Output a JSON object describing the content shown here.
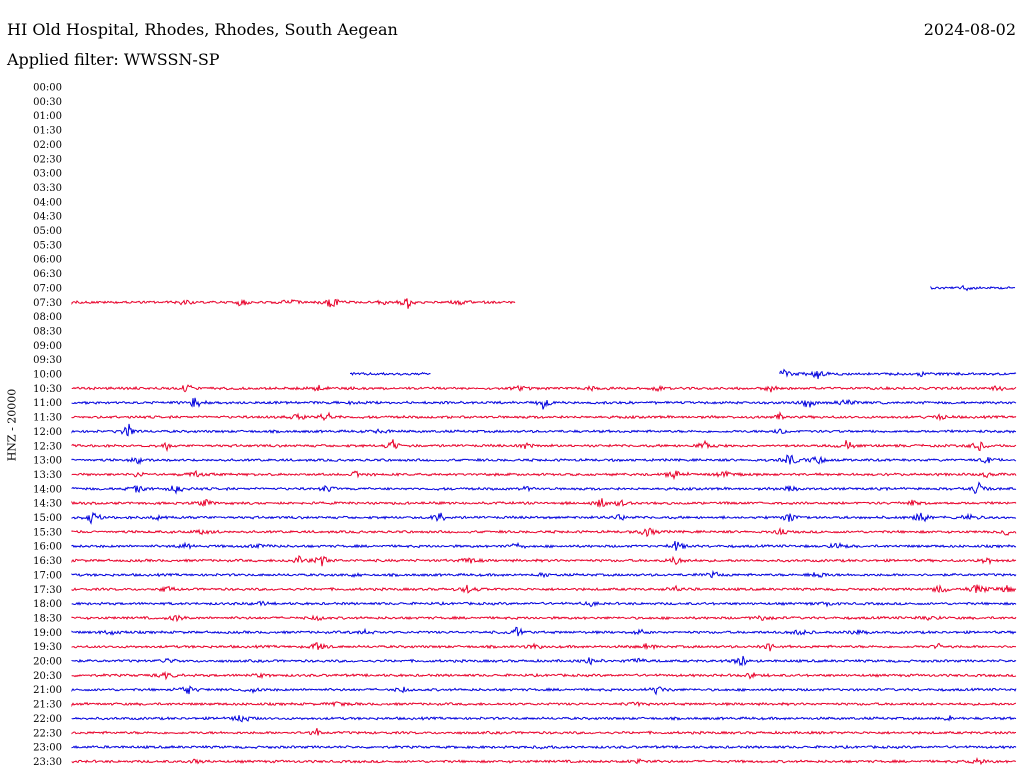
{
  "header": {
    "title": "HI Old Hospital, Rhodes, Rhodes, South Aegean",
    "date": "2024-08-02",
    "filter": "Applied filter: WWSSN-SP"
  },
  "chart_data": {
    "type": "line",
    "title": "HI Old Hospital, Rhodes, Rhodes, South Aegean",
    "subtitle": "Applied filter: WWSSN-SP",
    "ylabel": "HNZ - 20000",
    "row_labels": [
      "00:00",
      "00:30",
      "01:00",
      "01:30",
      "02:00",
      "02:30",
      "03:00",
      "03:30",
      "04:00",
      "04:30",
      "05:00",
      "05:30",
      "06:00",
      "06:30",
      "07:00",
      "07:30",
      "08:00",
      "08:30",
      "09:00",
      "09:30",
      "10:00",
      "10:30",
      "11:00",
      "11:30",
      "12:00",
      "12:30",
      "13:00",
      "13:30",
      "14:00",
      "14:30",
      "15:00",
      "15:30",
      "16:00",
      "16:30",
      "17:00",
      "17:30",
      "18:00",
      "18:30",
      "19:00",
      "19:30",
      "20:00",
      "20:30",
      "21:00",
      "21:30",
      "22:00",
      "22:30",
      "23:00",
      "23:30"
    ],
    "colors": {
      "odd_rows": "#0000dd",
      "even_rows": "#e8002a"
    },
    "rows": [
      {
        "label": "07:00",
        "coverage": [
          [
            0.91,
            1.0
          ]
        ],
        "events": [
          [
            0.945,
            0.4
          ]
        ]
      },
      {
        "label": "07:30",
        "coverage": [
          [
            0.0,
            0.47
          ]
        ],
        "events": [
          [
            0.12,
            0.45
          ],
          [
            0.18,
            0.6
          ],
          [
            0.23,
            0.5
          ],
          [
            0.275,
            1.0
          ],
          [
            0.33,
            0.4
          ],
          [
            0.355,
            1.0
          ],
          [
            0.41,
            0.4
          ]
        ]
      },
      {
        "label": "10:00",
        "coverage": [
          [
            0.295,
            0.38
          ],
          [
            0.75,
            1.0
          ]
        ],
        "events": [
          [
            0.755,
            0.9
          ],
          [
            0.79,
            0.6
          ],
          [
            0.9,
            0.3
          ]
        ]
      },
      {
        "label": "10:30",
        "coverage": [
          [
            0.0,
            1.0
          ]
        ],
        "events": [
          [
            0.12,
            0.6
          ],
          [
            0.26,
            0.5
          ],
          [
            0.475,
            0.5
          ],
          [
            0.55,
            0.3
          ],
          [
            0.62,
            0.3
          ],
          [
            0.74,
            0.5
          ],
          [
            0.98,
            0.4
          ]
        ]
      },
      {
        "label": "11:00",
        "coverage": [
          [
            0.0,
            1.0
          ]
        ],
        "events": [
          [
            0.13,
            1.0
          ],
          [
            0.29,
            0.4
          ],
          [
            0.5,
            1.0
          ],
          [
            0.78,
            0.9
          ],
          [
            0.82,
            0.6
          ]
        ]
      },
      {
        "label": "11:30",
        "coverage": [
          [
            0.0,
            1.0
          ]
        ],
        "events": [
          [
            0.24,
            0.5
          ],
          [
            0.27,
            0.8
          ],
          [
            0.75,
            0.4
          ],
          [
            0.92,
            0.4
          ]
        ]
      },
      {
        "label": "12:00",
        "coverage": [
          [
            0.0,
            1.0
          ]
        ],
        "events": [
          [
            0.06,
            1.0
          ],
          [
            0.33,
            0.4
          ],
          [
            0.75,
            0.4
          ]
        ]
      },
      {
        "label": "12:30",
        "coverage": [
          [
            0.0,
            1.0
          ]
        ],
        "events": [
          [
            0.1,
            0.5
          ],
          [
            0.34,
            0.8
          ],
          [
            0.48,
            0.4
          ],
          [
            0.67,
            0.6
          ],
          [
            0.82,
            0.7
          ],
          [
            0.96,
            0.9
          ]
        ]
      },
      {
        "label": "13:00",
        "coverage": [
          [
            0.0,
            1.0
          ]
        ],
        "events": [
          [
            0.07,
            0.4
          ],
          [
            0.76,
            1.0
          ],
          [
            0.79,
            0.6
          ],
          [
            0.97,
            0.4
          ]
        ]
      },
      {
        "label": "13:30",
        "coverage": [
          [
            0.0,
            1.0
          ]
        ],
        "events": [
          [
            0.07,
            0.4
          ],
          [
            0.13,
            0.5
          ],
          [
            0.3,
            0.6
          ],
          [
            0.64,
            0.9
          ],
          [
            0.69,
            0.5
          ],
          [
            0.97,
            0.5
          ]
        ]
      },
      {
        "label": "14:00",
        "coverage": [
          [
            0.0,
            1.0
          ]
        ],
        "events": [
          [
            0.07,
            0.5
          ],
          [
            0.11,
            0.7
          ],
          [
            0.27,
            0.4
          ],
          [
            0.48,
            0.4
          ],
          [
            0.76,
            0.4
          ],
          [
            0.96,
            1.0
          ]
        ]
      },
      {
        "label": "14:30",
        "coverage": [
          [
            0.0,
            1.0
          ]
        ],
        "events": [
          [
            0.14,
            0.6
          ],
          [
            0.56,
            0.9
          ],
          [
            0.58,
            0.5
          ],
          [
            0.89,
            0.4
          ]
        ]
      },
      {
        "label": "15:00",
        "coverage": [
          [
            0.0,
            1.0
          ]
        ],
        "events": [
          [
            0.022,
            1.0
          ],
          [
            0.09,
            0.5
          ],
          [
            0.39,
            0.8
          ],
          [
            0.58,
            0.4
          ],
          [
            0.76,
            0.9
          ],
          [
            0.9,
            0.9
          ],
          [
            0.95,
            0.4
          ]
        ]
      },
      {
        "label": "15:30",
        "coverage": [
          [
            0.0,
            1.0
          ]
        ],
        "events": [
          [
            0.14,
            0.4
          ],
          [
            0.61,
            0.9
          ],
          [
            0.75,
            0.4
          ],
          [
            0.99,
            0.5
          ]
        ]
      },
      {
        "label": "16:00",
        "coverage": [
          [
            0.0,
            1.0
          ]
        ],
        "events": [
          [
            0.12,
            0.5
          ],
          [
            0.2,
            0.4
          ],
          [
            0.47,
            0.5
          ],
          [
            0.64,
            0.8
          ],
          [
            0.81,
            0.6
          ]
        ]
      },
      {
        "label": "16:30",
        "coverage": [
          [
            0.0,
            1.0
          ]
        ],
        "events": [
          [
            0.24,
            0.7
          ],
          [
            0.265,
            1.0
          ],
          [
            0.42,
            0.7
          ],
          [
            0.64,
            0.6
          ],
          [
            0.97,
            0.4
          ]
        ]
      },
      {
        "label": "17:00",
        "coverage": [
          [
            0.0,
            1.0
          ]
        ],
        "events": [
          [
            0.3,
            0.3
          ],
          [
            0.5,
            0.3
          ],
          [
            0.68,
            0.4
          ],
          [
            0.79,
            0.6
          ]
        ]
      },
      {
        "label": "17:30",
        "coverage": [
          [
            0.0,
            1.0
          ]
        ],
        "events": [
          [
            0.1,
            0.4
          ],
          [
            0.42,
            0.8
          ],
          [
            0.64,
            0.4
          ],
          [
            0.92,
            0.6
          ],
          [
            0.96,
            1.0
          ],
          [
            0.99,
            0.6
          ]
        ]
      },
      {
        "label": "18:00",
        "coverage": [
          [
            0.0,
            1.0
          ]
        ],
        "events": [
          [
            0.2,
            0.3
          ],
          [
            0.55,
            0.3
          ],
          [
            0.8,
            0.3
          ]
        ]
      },
      {
        "label": "18:30",
        "coverage": [
          [
            0.0,
            1.0
          ]
        ],
        "events": [
          [
            0.11,
            0.5
          ],
          [
            0.26,
            0.4
          ],
          [
            0.73,
            0.5
          ],
          [
            0.91,
            0.5
          ]
        ]
      },
      {
        "label": "19:00",
        "coverage": [
          [
            0.0,
            1.0
          ]
        ],
        "events": [
          [
            0.04,
            0.4
          ],
          [
            0.31,
            0.3
          ],
          [
            0.47,
            0.9
          ],
          [
            0.6,
            0.4
          ],
          [
            0.77,
            0.6
          ],
          [
            0.83,
            0.4
          ]
        ]
      },
      {
        "label": "19:30",
        "coverage": [
          [
            0.0,
            1.0
          ]
        ],
        "events": [
          [
            0.26,
            0.8
          ],
          [
            0.49,
            0.4
          ],
          [
            0.61,
            0.4
          ],
          [
            0.74,
            0.6
          ],
          [
            0.92,
            0.4
          ]
        ]
      },
      {
        "label": "20:00",
        "coverage": [
          [
            0.0,
            1.0
          ]
        ],
        "events": [
          [
            0.1,
            0.5
          ],
          [
            0.55,
            0.7
          ],
          [
            0.6,
            0.5
          ],
          [
            0.71,
            1.0
          ]
        ]
      },
      {
        "label": "20:30",
        "coverage": [
          [
            0.0,
            1.0
          ]
        ],
        "events": [
          [
            0.1,
            0.5
          ],
          [
            0.2,
            0.3
          ],
          [
            0.72,
            0.4
          ]
        ]
      },
      {
        "label": "21:00",
        "coverage": [
          [
            0.0,
            1.0
          ]
        ],
        "events": [
          [
            0.12,
            1.0
          ],
          [
            0.19,
            0.5
          ],
          [
            0.35,
            0.4
          ],
          [
            0.62,
            0.6
          ]
        ]
      },
      {
        "label": "21:30",
        "coverage": [
          [
            0.0,
            1.0
          ]
        ],
        "events": [
          [
            0.28,
            0.3
          ],
          [
            0.6,
            0.3
          ]
        ]
      },
      {
        "label": "22:00",
        "coverage": [
          [
            0.0,
            1.0
          ]
        ],
        "events": [
          [
            0.18,
            0.6
          ],
          [
            0.93,
            0.4
          ]
        ]
      },
      {
        "label": "22:30",
        "coverage": [
          [
            0.0,
            1.0
          ]
        ],
        "events": [
          [
            0.26,
            0.5
          ]
        ]
      },
      {
        "label": "23:00",
        "coverage": [
          [
            0.0,
            1.0
          ]
        ],
        "events": [
          [
            0.5,
            0.2
          ]
        ]
      },
      {
        "label": "23:30",
        "coverage": [
          [
            0.0,
            1.0
          ]
        ],
        "events": [
          [
            0.13,
            0.3
          ],
          [
            0.6,
            0.3
          ],
          [
            0.96,
            0.5
          ]
        ]
      }
    ]
  }
}
